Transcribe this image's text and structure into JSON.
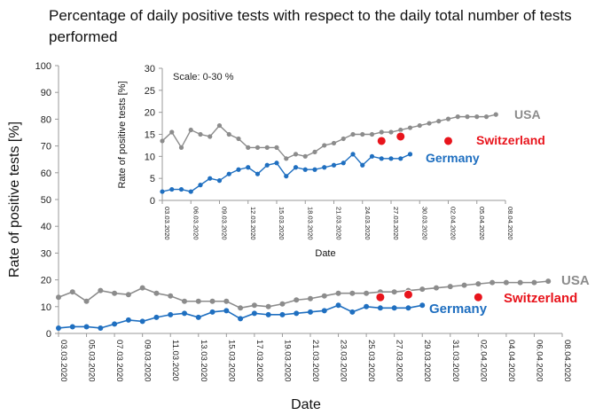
{
  "title": "Percentage of daily positive tests with respect to the daily total number of tests performed",
  "chart_data": [
    {
      "panel": "main",
      "type": "line",
      "xlabel": "Date",
      "ylabel": "Rate of positive tests [%]",
      "ylim": [
        0,
        100
      ],
      "yticks": [
        0,
        10,
        20,
        30,
        40,
        50,
        60,
        70,
        80,
        90,
        100
      ],
      "xticks": [
        "03.03.2020",
        "05.03.2020",
        "07.03.2020",
        "09.03.2020",
        "11.03.2020",
        "13.03.2020",
        "15.03.2020",
        "17.03.2020",
        "19.03.2020",
        "21.03.2020",
        "23.03.2020",
        "25.03.2020",
        "27.03.2020",
        "29.03.2020",
        "31.03.2020",
        "02.04.2020",
        "04.04.2020",
        "06.04.2020",
        "08.04.2020"
      ],
      "grid": false,
      "series": [
        {
          "name": "USA",
          "color": "#8c8c8c",
          "x": [
            "03.03.2020",
            "04.03.2020",
            "05.03.2020",
            "06.03.2020",
            "07.03.2020",
            "08.03.2020",
            "09.03.2020",
            "10.03.2020",
            "11.03.2020",
            "12.03.2020",
            "13.03.2020",
            "14.03.2020",
            "15.03.2020",
            "16.03.2020",
            "17.03.2020",
            "18.03.2020",
            "19.03.2020",
            "20.03.2020",
            "21.03.2020",
            "22.03.2020",
            "23.03.2020",
            "24.03.2020",
            "25.03.2020",
            "26.03.2020",
            "27.03.2020",
            "28.03.2020",
            "29.03.2020",
            "30.03.2020",
            "31.03.2020",
            "01.04.2020",
            "02.04.2020",
            "03.04.2020",
            "04.04.2020",
            "05.04.2020",
            "06.04.2020",
            "07.04.2020"
          ],
          "y": [
            13.5,
            15.5,
            12,
            16,
            15,
            14.5,
            17,
            15,
            14,
            12,
            12,
            12,
            12,
            9.5,
            10.5,
            10,
            11,
            12.5,
            13,
            14,
            15,
            15,
            15,
            15.5,
            15.5,
            16,
            16.5,
            17,
            17.5,
            18,
            18.5,
            19,
            19,
            19,
            19,
            19.5
          ]
        },
        {
          "name": "Germany",
          "color": "#1f6fc0",
          "x": [
            "03.03.2020",
            "04.03.2020",
            "05.03.2020",
            "06.03.2020",
            "07.03.2020",
            "08.03.2020",
            "09.03.2020",
            "10.03.2020",
            "11.03.2020",
            "12.03.2020",
            "13.03.2020",
            "14.03.2020",
            "15.03.2020",
            "16.03.2020",
            "17.03.2020",
            "18.03.2020",
            "19.03.2020",
            "20.03.2020",
            "21.03.2020",
            "22.03.2020",
            "23.03.2020",
            "24.03.2020",
            "25.03.2020",
            "26.03.2020",
            "27.03.2020",
            "28.03.2020",
            "29.03.2020"
          ],
          "y": [
            2,
            2.5,
            2.5,
            2,
            3.5,
            5,
            4.5,
            6,
            7,
            7.5,
            6,
            8,
            8.5,
            5.5,
            7.5,
            7,
            7,
            7.5,
            8,
            8.5,
            10.5,
            8,
            10,
            9.5,
            9.5,
            9.5,
            10.5
          ]
        },
        {
          "name": "Switzerland",
          "color": "#e8141c",
          "x": [
            "26.03.2020",
            "28.03.2020",
            "02.04.2020"
          ],
          "y": [
            13.5,
            14.5,
            13.5
          ]
        }
      ]
    },
    {
      "panel": "inset",
      "type": "line",
      "note": "Scale: 0-30 %",
      "xlabel": "Date",
      "ylabel": "Rate of positive tests [%]",
      "ylim": [
        0,
        30
      ],
      "yticks": [
        0,
        5,
        10,
        15,
        20,
        25,
        30
      ],
      "xticks": [
        "03.03.2020",
        "06.03.2020",
        "09.03.2020",
        "12.03.2020",
        "15.03.2020",
        "18.03.2020",
        "21.03.2020",
        "24.03.2020",
        "27.03.2020",
        "30.03.2020",
        "02.04.2020",
        "05.04.2020",
        "08.04.2020"
      ],
      "grid": false,
      "series_ref": "same data as main panel"
    }
  ],
  "series_colors": {
    "USA": "#8c8c8c",
    "Germany": "#1f6fc0",
    "Switzerland": "#e8141c"
  }
}
